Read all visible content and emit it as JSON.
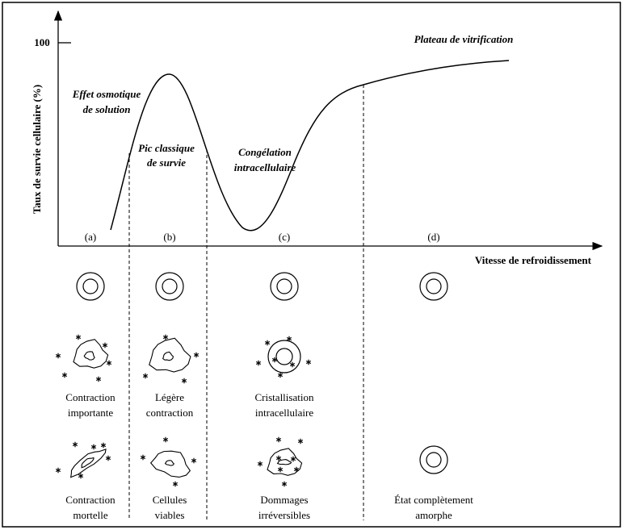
{
  "axes": {
    "y_label": "Taux de survie cellulaire (%)",
    "x_label": "Vitesse de refroidissement",
    "y_tick": "100"
  },
  "annotations": {
    "osmotic": [
      "Effet osmotique",
      "de solution"
    ],
    "peak": [
      "Pic classique",
      "de survie"
    ],
    "freezing": [
      "Congélation",
      "intracellulaire"
    ],
    "plateau": [
      "Plateau de vitrification"
    ]
  },
  "columns": [
    {
      "label": "(a)",
      "middle": [
        "Contraction",
        "importante"
      ],
      "bottom": [
        "Contraction",
        "mortelle"
      ]
    },
    {
      "label": "(b)",
      "middle": [
        "Légère",
        "contraction"
      ],
      "bottom": [
        "Cellules",
        "viables"
      ]
    },
    {
      "label": "(c)",
      "middle": [
        "Cristallisation",
        "intracellulaire"
      ],
      "bottom": [
        "Dommages",
        "irréversibles"
      ]
    },
    {
      "label": "(d)",
      "middle": [],
      "bottom": [
        "État complètement",
        "amorphe"
      ]
    }
  ]
}
